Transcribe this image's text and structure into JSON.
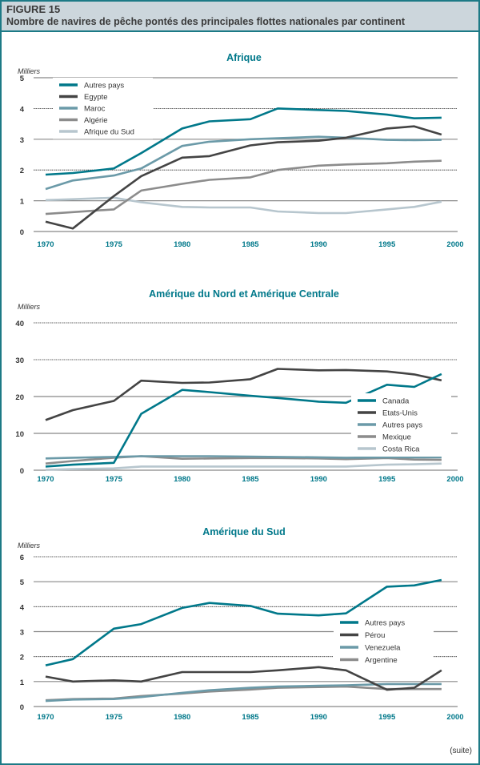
{
  "figure": {
    "label": "FIGURE 15",
    "title": "Nombre de navires de pêche pontés des principales flottes nationales par continent",
    "footer": "(suite)"
  },
  "colors": {
    "teal": "#00788a",
    "dark": "#444444",
    "blue_gray": "#6b9aa8",
    "gray": "#8c8c8c",
    "light": "#b7c6ce",
    "header_bg": "#ccd6dc"
  },
  "chart_data": [
    {
      "type": "line",
      "title": "Afrique",
      "ylabel": "Milliers",
      "ylim": [
        0,
        5
      ],
      "yticks": [
        "0",
        "1",
        "2",
        "3",
        "4",
        "5"
      ],
      "xticks": [
        "1970",
        "1975",
        "1980",
        "1985",
        "1990",
        "1995",
        "2000"
      ],
      "xlim": [
        1970,
        2000
      ],
      "grid": true,
      "legend": "top-left",
      "x": [
        1970,
        1972,
        1975,
        1977,
        1980,
        1982,
        1985,
        1987,
        1990,
        1992,
        1995,
        1997,
        1999
      ],
      "series": [
        {
          "name": "Autres pays",
          "color": "#00788a",
          "values": [
            1.85,
            1.9,
            2.05,
            2.55,
            3.35,
            3.58,
            3.65,
            4.0,
            3.95,
            3.92,
            3.8,
            3.68,
            3.7
          ]
        },
        {
          "name": "Egypte",
          "color": "#444444",
          "values": [
            0.32,
            0.1,
            1.15,
            1.8,
            2.4,
            2.45,
            2.8,
            2.9,
            2.95,
            3.05,
            3.35,
            3.42,
            3.15
          ]
        },
        {
          "name": "Maroc",
          "color": "#6b9aa8",
          "values": [
            1.38,
            1.66,
            1.82,
            2.05,
            2.78,
            2.92,
            3.0,
            3.03,
            3.08,
            3.05,
            2.98,
            2.97,
            2.98
          ]
        },
        {
          "name": "Algérie",
          "color": "#8c8c8c",
          "values": [
            0.57,
            0.63,
            0.72,
            1.33,
            1.55,
            1.68,
            1.76,
            2.0,
            2.14,
            2.18,
            2.22,
            2.27,
            2.3
          ]
        },
        {
          "name": "Afrique du Sud",
          "color": "#b7c6ce",
          "values": [
            1.02,
            1.05,
            1.1,
            0.95,
            0.8,
            0.78,
            0.78,
            0.65,
            0.6,
            0.6,
            0.72,
            0.8,
            0.97
          ]
        }
      ]
    },
    {
      "type": "line",
      "title": "Amérique du Nord et Amérique Centrale",
      "ylabel": "Milliers",
      "ylim": [
        0,
        40
      ],
      "yticks": [
        "0",
        "10",
        "20",
        "30",
        "40"
      ],
      "xticks": [
        "1970",
        "1975",
        "1980",
        "1985",
        "1990",
        "1995",
        "2000"
      ],
      "xlim": [
        1970,
        2000
      ],
      "grid": true,
      "legend": "right",
      "x": [
        1970,
        1972,
        1975,
        1977,
        1980,
        1982,
        1985,
        1987,
        1990,
        1992,
        1995,
        1997,
        1999
      ],
      "series": [
        {
          "name": "Canada",
          "color": "#00788a",
          "values": [
            1,
            1.5,
            2,
            15.3,
            21.8,
            21.2,
            20.2,
            19.6,
            18.6,
            18.3,
            23.2,
            22.6,
            26.1
          ]
        },
        {
          "name": "Etats-Unis",
          "color": "#444444",
          "values": [
            13.6,
            16.3,
            18.8,
            24.3,
            23.7,
            23.8,
            24.7,
            27.5,
            27.1,
            27.2,
            26.8,
            26,
            24.4
          ]
        },
        {
          "name": "Autres pays",
          "color": "#6b9aa8",
          "values": [
            3.2,
            3.4,
            3.6,
            3.8,
            3.8,
            3.8,
            3.7,
            3.6,
            3.5,
            3.4,
            3.5,
            3.5,
            3.5
          ]
        },
        {
          "name": "Mexique",
          "color": "#8c8c8c",
          "values": [
            1.8,
            2.5,
            3.4,
            3.8,
            3.1,
            3.2,
            3.3,
            3.3,
            3.2,
            3,
            3.3,
            2.9,
            2.8
          ]
        },
        {
          "name": "Costa Rica",
          "color": "#b7c6ce",
          "values": [
            0.1,
            0.3,
            0.5,
            1,
            1,
            1,
            1,
            1,
            1,
            1,
            1.5,
            1.6,
            1.8
          ]
        }
      ]
    },
    {
      "type": "line",
      "title": "Amérique du Sud",
      "ylabel": "Milliers",
      "ylim": [
        0,
        6
      ],
      "yticks": [
        "0",
        "1",
        "2",
        "3",
        "4",
        "5",
        "6"
      ],
      "xticks": [
        "1970",
        "1975",
        "1980",
        "1985",
        "1990",
        "1995",
        "2000"
      ],
      "xlim": [
        1970,
        2000
      ],
      "grid": true,
      "legend": "right",
      "x": [
        1970,
        1972,
        1975,
        1977,
        1980,
        1982,
        1985,
        1987,
        1990,
        1992,
        1995,
        1997,
        1999
      ],
      "series": [
        {
          "name": "Autres pays",
          "color": "#00788a",
          "values": [
            1.65,
            1.9,
            3.12,
            3.3,
            3.95,
            4.15,
            4.03,
            3.72,
            3.65,
            3.73,
            4.8,
            4.85,
            5.07
          ]
        },
        {
          "name": "Pérou",
          "color": "#444444",
          "values": [
            1.2,
            1.0,
            1.05,
            1.0,
            1.38,
            1.38,
            1.38,
            1.45,
            1.58,
            1.45,
            0.67,
            0.75,
            1.45
          ]
        },
        {
          "name": "Venezuela",
          "color": "#6b9aa8",
          "values": [
            0.22,
            0.28,
            0.3,
            0.38,
            0.55,
            0.65,
            0.75,
            0.8,
            0.83,
            0.85,
            0.9,
            0.9,
            0.9
          ]
        },
        {
          "name": "Argentine",
          "color": "#8c8c8c",
          "values": [
            0.25,
            0.3,
            0.32,
            0.42,
            0.52,
            0.6,
            0.68,
            0.75,
            0.78,
            0.8,
            0.7,
            0.7,
            0.7
          ]
        }
      ]
    }
  ]
}
